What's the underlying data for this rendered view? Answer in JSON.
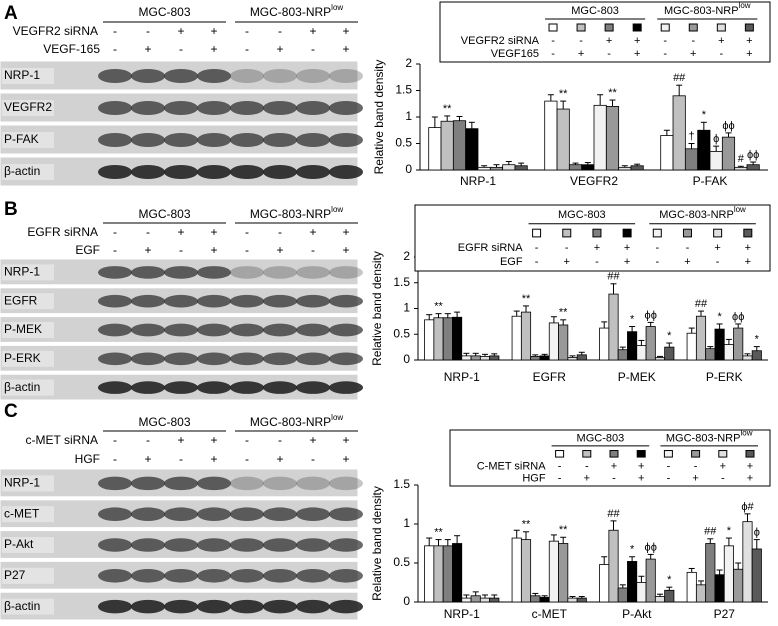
{
  "panels": [
    {
      "letter": "A",
      "groups": [
        "MGC-803",
        {
          "base": "MGC-803-NRP",
          "sup": "low"
        }
      ],
      "treatments": [
        {
          "label": "VEGFR2 siRNA",
          "signs": [
            "-",
            "-",
            "+",
            "+",
            "-",
            "-",
            "+",
            "+"
          ]
        },
        {
          "label": "VEGF-165",
          "signs": [
            "-",
            "+",
            "-",
            "+",
            "-",
            "+",
            "-",
            "+"
          ]
        }
      ],
      "proteins": [
        "NRP-1",
        "VEGFR2",
        "P-FAK",
        "β-actin"
      ]
    },
    {
      "letter": "B",
      "groups": [
        "MGC-803",
        {
          "base": "MGC-803-NRP",
          "sup": "low"
        }
      ],
      "treatments": [
        {
          "label": "EGFR siRNA",
          "signs": [
            "-",
            "-",
            "+",
            "+",
            "-",
            "-",
            "+",
            "+"
          ]
        },
        {
          "label": "EGF",
          "signs": [
            "-",
            "+",
            "-",
            "+",
            "-",
            "+",
            "-",
            "+"
          ]
        }
      ],
      "proteins": [
        "NRP-1",
        "EGFR",
        "P-MEK",
        "P-ERK",
        "β-actin"
      ]
    },
    {
      "letter": "C",
      "groups": [
        "MGC-803",
        {
          "base": "MGC-803-NRP",
          "sup": "low"
        }
      ],
      "treatments": [
        {
          "label": "c-MET siRNA",
          "signs": [
            "-",
            "-",
            "+",
            "+",
            "-",
            "-",
            "+",
            "+"
          ]
        },
        {
          "label": "HGF",
          "signs": [
            "-",
            "+",
            "-",
            "+",
            "-",
            "+",
            "-",
            "+"
          ]
        }
      ],
      "proteins": [
        "NRP-1",
        "c-MET",
        "P-Akt",
        "P27",
        "β-actin"
      ]
    }
  ],
  "chart_data": [
    {
      "type": "bar",
      "y_label": "Relative band density",
      "categories": [
        "NRP-1",
        "VEGFR2",
        "P-FAK"
      ],
      "series": [
        {
          "color": "#ffffff",
          "values": [
            0.8,
            1.3,
            0.65
          ],
          "errors": [
            0.2,
            0.12,
            0.1
          ]
        },
        {
          "color": "#c0c0c0",
          "values": [
            0.92,
            1.15,
            1.4
          ],
          "errors": [
            0.1,
            0.15,
            0.2
          ]
        },
        {
          "color": "#7f7f7f",
          "values": [
            0.93,
            0.1,
            0.4
          ],
          "errors": [
            0.08,
            0.03,
            0.1
          ]
        },
        {
          "color": "#000000",
          "values": [
            0.78,
            0.1,
            0.75
          ],
          "errors": [
            0.12,
            0.04,
            0.15
          ]
        },
        {
          "color": "#f2f2f2",
          "values": [
            0.05,
            1.22,
            0.35
          ],
          "errors": [
            0.03,
            0.2,
            0.1
          ]
        },
        {
          "color": "#999999",
          "values": [
            0.05,
            1.2,
            0.62
          ],
          "errors": [
            0.05,
            0.12,
            0.08
          ]
        },
        {
          "color": "#e0e0e0",
          "values": [
            0.1,
            0.05,
            0.05
          ],
          "errors": [
            0.06,
            0.03,
            0.02
          ]
        },
        {
          "color": "#595959",
          "values": [
            0.08,
            0.08,
            0.1
          ],
          "errors": [
            0.05,
            0.03,
            0.05
          ]
        }
      ],
      "ylim": [
        0,
        2
      ],
      "yticks": [
        0,
        0.5,
        1,
        1.5,
        2
      ],
      "legend": {
        "groups": [
          "MGC-803",
          {
            "base": "MGC-803-NRP",
            "sup": "low"
          }
        ],
        "rows": [
          {
            "label": "VEGFR2 siRNA",
            "signs": [
              "-",
              "-",
              "+",
              "+",
              "-",
              "-",
              "+",
              "+"
            ]
          },
          {
            "label": "VEGF165",
            "signs": [
              "-",
              "+",
              "-",
              "+",
              "-",
              "+",
              "-",
              "+"
            ]
          }
        ]
      },
      "annotations": [
        {
          "text": "**",
          "at": [
            0,
            1
          ]
        },
        {
          "text": "**",
          "at": [
            1,
            1
          ]
        },
        {
          "text": "**",
          "at": [
            1,
            5
          ]
        },
        {
          "text": "##",
          "at": [
            2,
            1
          ]
        },
        {
          "text": "*",
          "at": [
            2,
            3
          ]
        },
        {
          "text": "†",
          "at": [
            2,
            2
          ]
        },
        {
          "text": "ϕ",
          "at": [
            2,
            4
          ]
        },
        {
          "text": "ϕϕ",
          "at": [
            2,
            5
          ]
        },
        {
          "text": "#",
          "at": [
            2,
            6
          ]
        },
        {
          "text": "ϕϕ",
          "at": [
            2,
            7
          ]
        }
      ]
    },
    {
      "type": "bar",
      "y_label": "Relative band density",
      "categories": [
        "NRP-1",
        "EGFR",
        "P-MEK",
        "P-ERK"
      ],
      "series": [
        {
          "color": "#ffffff",
          "values": [
            0.78,
            0.85,
            0.62,
            0.52
          ],
          "errors": [
            0.1,
            0.1,
            0.12,
            0.1
          ]
        },
        {
          "color": "#c0c0c0",
          "values": [
            0.82,
            0.93,
            1.28,
            0.85
          ],
          "errors": [
            0.08,
            0.12,
            0.2,
            0.1
          ]
        },
        {
          "color": "#7f7f7f",
          "values": [
            0.82,
            0.07,
            0.2,
            0.22
          ],
          "errors": [
            0.08,
            0.03,
            0.05,
            0.04
          ]
        },
        {
          "color": "#000000",
          "values": [
            0.83,
            0.08,
            0.55,
            0.6
          ],
          "errors": [
            0.1,
            0.03,
            0.1,
            0.1
          ]
        },
        {
          "color": "#f2f2f2",
          "values": [
            0.08,
            0.72,
            0.28,
            0.3
          ],
          "errors": [
            0.05,
            0.12,
            0.1,
            0.1
          ]
        },
        {
          "color": "#999999",
          "values": [
            0.08,
            0.68,
            0.65,
            0.62
          ],
          "errors": [
            0.05,
            0.1,
            0.08,
            0.08
          ]
        },
        {
          "color": "#e0e0e0",
          "values": [
            0.07,
            0.05,
            0.05,
            0.08
          ],
          "errors": [
            0.04,
            0.03,
            0.02,
            0.04
          ]
        },
        {
          "color": "#595959",
          "values": [
            0.08,
            0.1,
            0.25,
            0.18
          ],
          "errors": [
            0.04,
            0.05,
            0.08,
            0.08
          ]
        }
      ],
      "ylim": [
        0,
        2
      ],
      "yticks": [
        0,
        0.5,
        1,
        1.5,
        2
      ],
      "legend": {
        "groups": [
          "MGC-803",
          {
            "base": "MGC-803-NRP",
            "sup": "low"
          }
        ],
        "rows": [
          {
            "label": "EGFR siRNA",
            "signs": [
              "-",
              "-",
              "+",
              "+",
              "-",
              "-",
              "+",
              "+"
            ]
          },
          {
            "label": "EGF",
            "signs": [
              "-",
              "+",
              "-",
              "+",
              "-",
              "+",
              "-",
              "+"
            ]
          }
        ]
      },
      "annotations": [
        {
          "text": "**",
          "at": [
            0,
            1
          ]
        },
        {
          "text": "**",
          "at": [
            1,
            1
          ]
        },
        {
          "text": "**",
          "at": [
            1,
            5
          ]
        },
        {
          "text": "##",
          "at": [
            2,
            1
          ]
        },
        {
          "text": "*",
          "at": [
            2,
            3
          ]
        },
        {
          "text": "ϕϕ",
          "at": [
            2,
            5
          ]
        },
        {
          "text": "*",
          "at": [
            2,
            7
          ]
        },
        {
          "text": "##",
          "at": [
            3,
            1
          ]
        },
        {
          "text": "*",
          "at": [
            3,
            3
          ]
        },
        {
          "text": "ϕϕ",
          "at": [
            3,
            5
          ]
        },
        {
          "text": "*",
          "at": [
            3,
            7
          ]
        }
      ]
    },
    {
      "type": "bar",
      "y_label": "Relative band density",
      "categories": [
        "NRP-1",
        "c-MET",
        "P-Akt",
        "P27"
      ],
      "series": [
        {
          "color": "#ffffff",
          "values": [
            0.72,
            0.82,
            0.48,
            0.38
          ],
          "errors": [
            0.1,
            0.1,
            0.1,
            0.05
          ]
        },
        {
          "color": "#c0c0c0",
          "values": [
            0.72,
            0.8,
            0.92,
            0.22
          ],
          "errors": [
            0.08,
            0.1,
            0.12,
            0.05
          ]
        },
        {
          "color": "#7f7f7f",
          "values": [
            0.72,
            0.08,
            0.18,
            0.75
          ],
          "errors": [
            0.08,
            0.03,
            0.04,
            0.06
          ]
        },
        {
          "color": "#000000",
          "values": [
            0.75,
            0.06,
            0.52,
            0.35
          ],
          "errors": [
            0.1,
            0.02,
            0.06,
            0.06
          ]
        },
        {
          "color": "#f2f2f2",
          "values": [
            0.05,
            0.78,
            0.25,
            0.72
          ],
          "errors": [
            0.04,
            0.08,
            0.08,
            0.1
          ]
        },
        {
          "color": "#999999",
          "values": [
            0.08,
            0.75,
            0.55,
            0.42
          ],
          "errors": [
            0.05,
            0.08,
            0.06,
            0.08
          ]
        },
        {
          "color": "#e0e0e0",
          "values": [
            0.05,
            0.05,
            0.07,
            1.03
          ],
          "errors": [
            0.04,
            0.02,
            0.03,
            0.1
          ]
        },
        {
          "color": "#595959",
          "values": [
            0.05,
            0.05,
            0.15,
            0.68
          ],
          "errors": [
            0.04,
            0.02,
            0.04,
            0.12
          ]
        }
      ],
      "ylim": [
        0,
        1.5
      ],
      "yticks": [
        0,
        0.5,
        1,
        1.5
      ],
      "legend": {
        "groups": [
          "MGC-803",
          {
            "base": "MGC-803-NRP",
            "sup": "low"
          }
        ],
        "rows": [
          {
            "label": "C-MET siRNA",
            "signs": [
              "-",
              "-",
              "+",
              "+",
              "-",
              "-",
              "+",
              "+"
            ]
          },
          {
            "label": "HGF",
            "signs": [
              "-",
              "+",
              "-",
              "+",
              "-",
              "+",
              "-",
              "+"
            ]
          }
        ]
      },
      "annotations": [
        {
          "text": "**",
          "at": [
            0,
            1
          ]
        },
        {
          "text": "**",
          "at": [
            1,
            1
          ]
        },
        {
          "text": "**",
          "at": [
            1,
            5
          ]
        },
        {
          "text": "##",
          "at": [
            2,
            1
          ]
        },
        {
          "text": "*",
          "at": [
            2,
            3
          ]
        },
        {
          "text": "ϕϕ",
          "at": [
            2,
            5
          ]
        },
        {
          "text": "*",
          "at": [
            2,
            7
          ]
        },
        {
          "text": "##",
          "at": [
            3,
            2
          ]
        },
        {
          "text": "*",
          "at": [
            3,
            4
          ]
        },
        {
          "text": "ϕ#",
          "at": [
            3,
            6
          ]
        },
        {
          "text": "ϕ",
          "at": [
            3,
            7
          ]
        }
      ]
    }
  ]
}
